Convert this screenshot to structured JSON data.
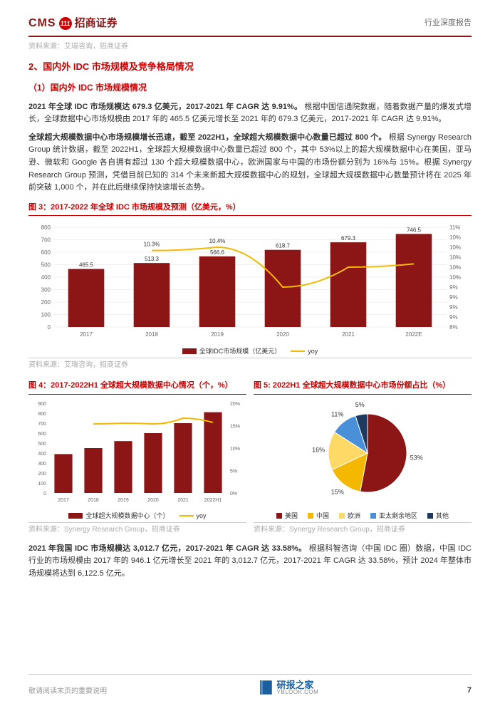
{
  "header": {
    "logo_en": "CMS",
    "logo_circle": "111",
    "logo_cn": "招商证券",
    "doc_type": "行业深度报告"
  },
  "top_source": "资料来源：艾瑞咨询，招商证券",
  "section2_title": "2、国内外 IDC 市场规模及竞争格局情况",
  "sub1_title": "（1）国内外 IDC 市场规模情况",
  "p1_bold": "2021 年全球 IDC 市场规模达 679.3 亿美元，2017-2021 年 CAGR 达 9.91%。",
  "p1_text": "根据中国信通院数据，随着数据产量的爆发式增长，全球数据中心市场规模由 2017 年的 465.5 亿美元增长至 2021 年的 679.3 亿美元，2017-2021 年 CAGR 达 9.91%。",
  "p2_bold": "全球超大规模数据中心市场规模增长迅速，截至 2022H1，全球超大规模数据中心数量已超过 800 个。",
  "p2_text": "根据 Synergy Research Group 统计数据，截至 2022H1，全球超大规模数据中心数量已超过 800 个，其中 53%以上的超大规模数据中心在美国，亚马逊、微软和 Google 各自拥有超过 130 个超大规模数据中心，欧洲国家与中国的市场份额分别为 16%与 15%。根据 Synergy Research Group 预测，凭借目前已知的 314 个未来新超大规模数据中心的规划，全球超大规模数据中心数量预计将在 2025 年前突破 1,000 个，并在此后继续保持快速增长态势。",
  "fig3": {
    "title": "图 3：2017-2022 年全球 IDC 市场规模及预测（亿美元，%）",
    "type": "bar+line",
    "categories": [
      "2017",
      "2018",
      "2019",
      "2020",
      "2021",
      "2022E"
    ],
    "bar_values": [
      465.5,
      513.3,
      566.6,
      618.7,
      679.3,
      746.5
    ],
    "bar_color": "#8c1515",
    "line_values": [
      null,
      10.3,
      10.4,
      9.2,
      9.8,
      9.9
    ],
    "line_labels": [
      "",
      "10.3%",
      "10.4%",
      "",
      "",
      ""
    ],
    "line_color": "#f5b800",
    "y1_min": 0,
    "y1_max": 800,
    "y1_step": 100,
    "y2_min": 8,
    "y2_max": 11,
    "y2_ticks": [
      "8%",
      "9%",
      "9%",
      "9%",
      "9%",
      "10%",
      "10%",
      "10%",
      "10%",
      "10%",
      "11%"
    ],
    "legend_bar": "全球IDC市场规模（亿美元）",
    "legend_line": "yoy",
    "grid_color": "#e0e0e0",
    "source": "资料来源：艾瑞咨询，招商证券"
  },
  "fig4": {
    "title": "图 4：2017-2022H1 全球超大规模数据中心情况（个，%）",
    "type": "bar+line",
    "categories": [
      "2017",
      "2018",
      "2019",
      "2020",
      "2021",
      "2022H1"
    ],
    "bar_values": [
      390,
      450,
      520,
      600,
      700,
      810
    ],
    "bar_color": "#8c1515",
    "line_color": "#f5b800",
    "y1_min": 0,
    "y1_max": 900,
    "y1_step": 100,
    "y2_min": 0,
    "y2_max": 20,
    "y2_step": 5,
    "legend_bar": "全球超大规模数据中心（个）",
    "legend_line": "yoy",
    "source": "资料来源：Synergy Research Group，招商证券"
  },
  "fig5": {
    "title": "图 5: 2022H1 全球超大规模数据中心市场份额占比（%）",
    "type": "pie",
    "slices": [
      {
        "label": "美国",
        "value": 53,
        "color": "#8c1515",
        "text": "53%"
      },
      {
        "label": "中国",
        "value": 15,
        "color": "#f5b800",
        "text": "15%"
      },
      {
        "label": "欧洲",
        "value": 16,
        "color": "#ffd966",
        "text": "16%"
      },
      {
        "label": "亚太剩余地区",
        "value": 11,
        "color": "#4a90d9",
        "text": "11%"
      },
      {
        "label": "其他",
        "value": 5,
        "color": "#1f3a5f",
        "text": "5%"
      }
    ],
    "source": "资料来源：Synergy Research Group，招商证券"
  },
  "p3_bold": "2021 年我国 IDC 市场规模达 3,012.7 亿元，2017-2021 年 CAGR 达 33.58%。",
  "p3_text": "根据科智咨询（中国 IDC 圈）数据，中国 IDC 行业的市场规模由 2017 年的 946.1 亿元增长至 2021 年的 3,012.7 亿元，2017-2021 年 CAGR 达 33.58%，预计 2024 年整体市场规模将达到 6,122.5 亿元。",
  "footer": {
    "disclaimer": "敬请阅读末页的重要说明",
    "page": "7",
    "yb_cn": "研报之家",
    "yb_en": "YBLOOK.COM"
  }
}
